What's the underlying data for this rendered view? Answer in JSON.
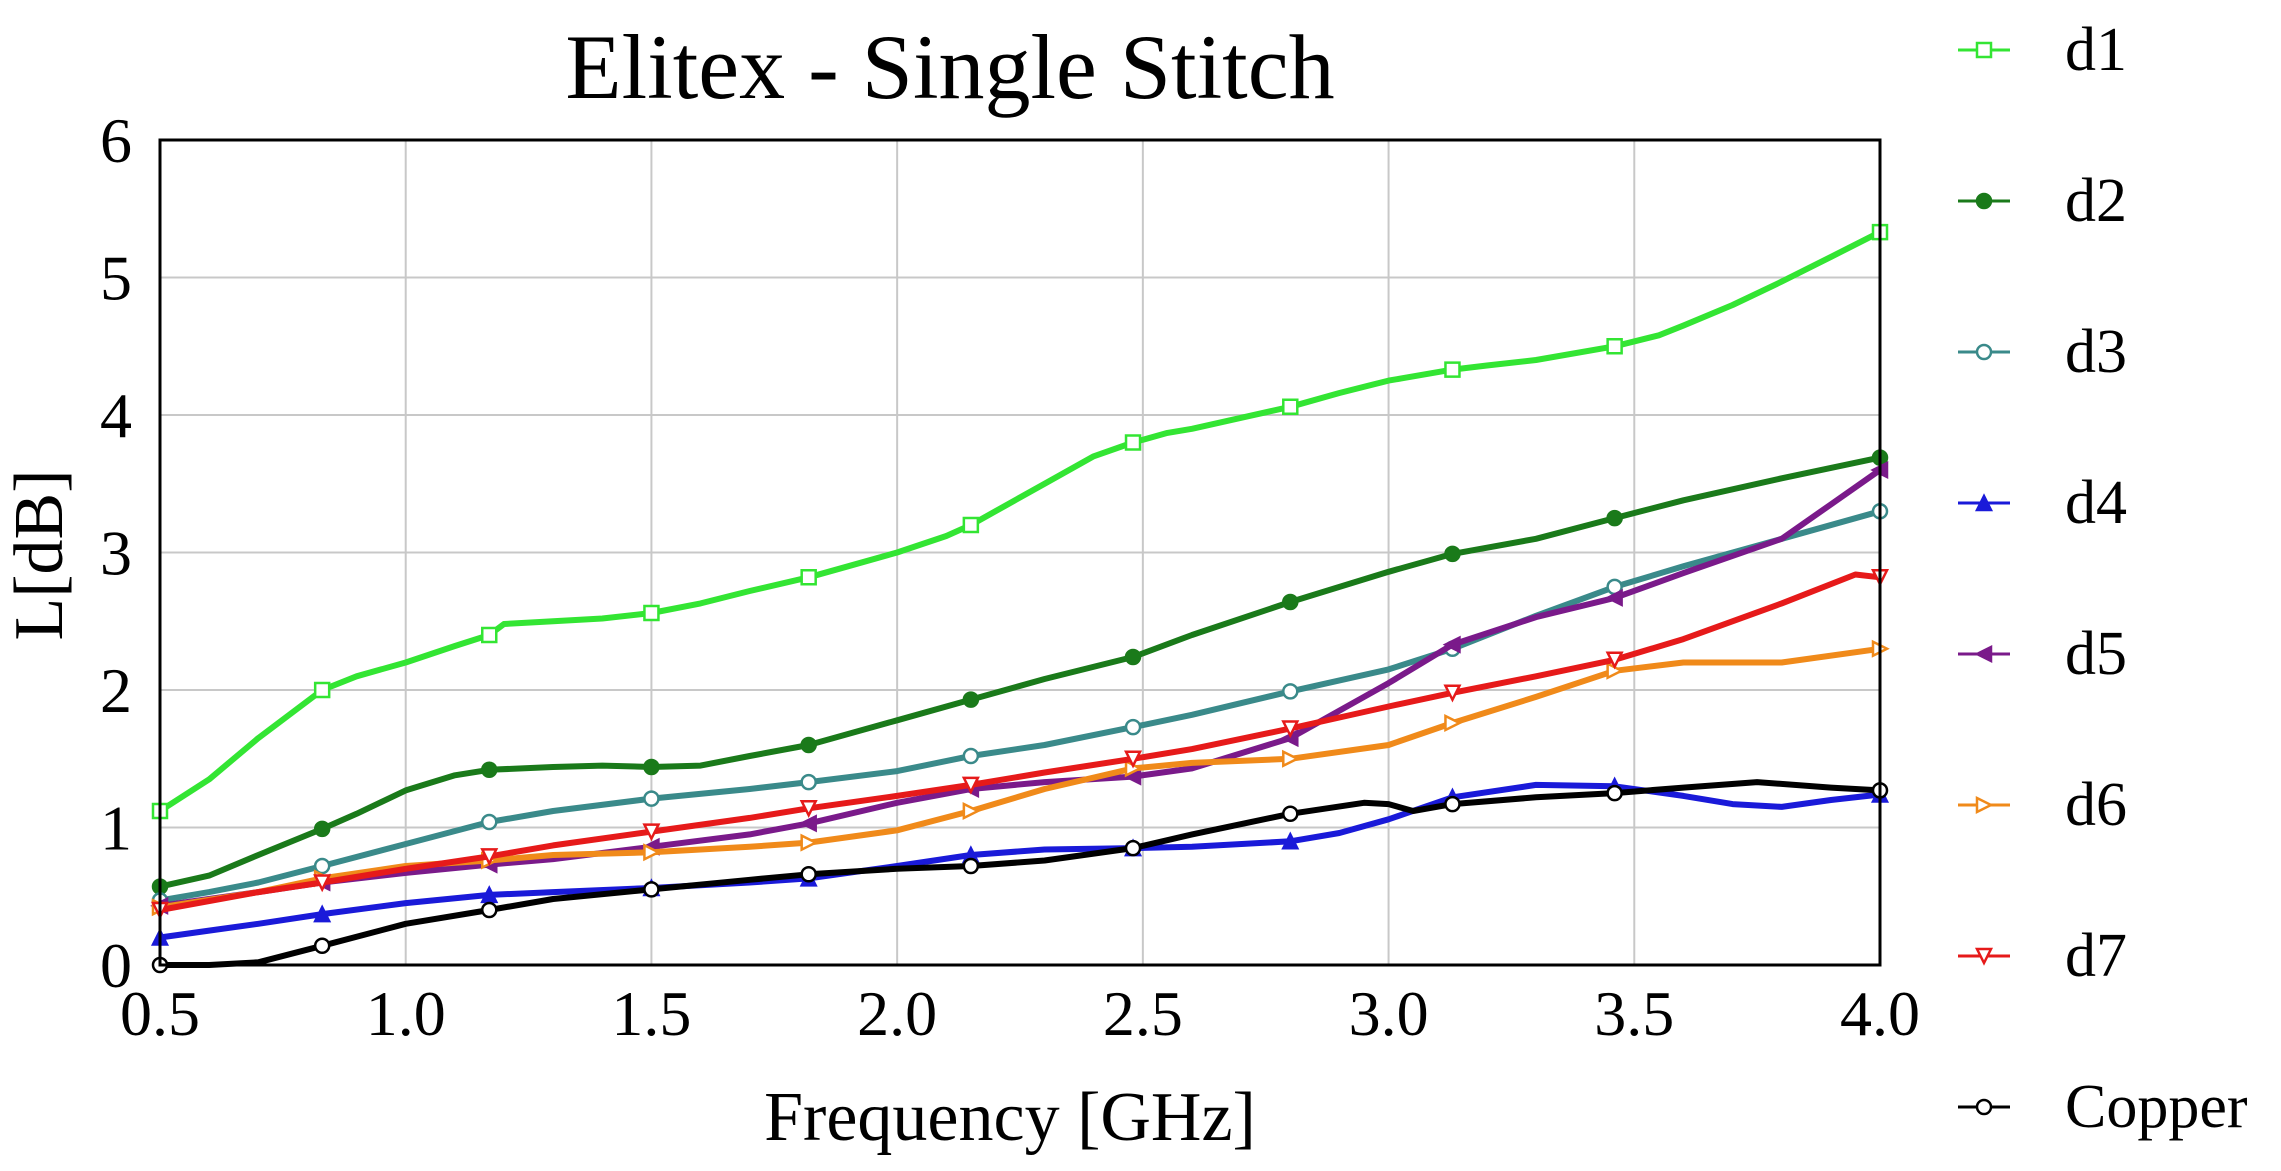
{
  "chart_data": {
    "type": "line",
    "title": "Elitex - Single Stitch",
    "xlabel": "Frequency [GHz]",
    "ylabel": "L[dB]",
    "xlim": [
      0.5,
      4.0
    ],
    "ylim": [
      0,
      6
    ],
    "xticks": [
      "0.5",
      "1.0",
      "1.5",
      "2.0",
      "2.5",
      "3.0",
      "3.5",
      "4.0"
    ],
    "yticks": [
      "0",
      "1",
      "2",
      "3",
      "4",
      "5",
      "6"
    ],
    "grid": true,
    "legend_position": "right",
    "series": [
      {
        "name": "d1",
        "color": "#33e533",
        "marker": "square-open",
        "x": [
          0.5,
          0.6,
          0.7,
          0.83,
          0.9,
          1.0,
          1.1,
          1.17,
          1.2,
          1.3,
          1.4,
          1.5,
          1.6,
          1.7,
          1.82,
          1.9,
          2.0,
          2.1,
          2.15,
          2.2,
          2.3,
          2.4,
          2.48,
          2.55,
          2.6,
          2.7,
          2.8,
          2.9,
          3.0,
          3.13,
          3.2,
          3.3,
          3.46,
          3.55,
          3.6,
          3.7,
          3.8,
          3.9,
          4.0
        ],
        "y": [
          1.12,
          1.35,
          1.65,
          2.0,
          2.1,
          2.2,
          2.32,
          2.4,
          2.48,
          2.5,
          2.52,
          2.56,
          2.63,
          2.72,
          2.82,
          2.9,
          3.0,
          3.12,
          3.2,
          3.3,
          3.5,
          3.7,
          3.8,
          3.87,
          3.9,
          3.98,
          4.06,
          4.16,
          4.25,
          4.33,
          4.36,
          4.4,
          4.5,
          4.58,
          4.65,
          4.8,
          4.97,
          5.15,
          5.33
        ]
      },
      {
        "name": "d2",
        "color": "#1a7a1a",
        "marker": "circle-filled",
        "x": [
          0.5,
          0.6,
          0.7,
          0.83,
          0.9,
          1.0,
          1.1,
          1.17,
          1.3,
          1.4,
          1.5,
          1.6,
          1.7,
          1.82,
          1.9,
          2.0,
          2.15,
          2.3,
          2.48,
          2.6,
          2.8,
          3.0,
          3.13,
          3.3,
          3.46,
          3.6,
          3.8,
          4.0
        ],
        "y": [
          0.57,
          0.65,
          0.8,
          0.99,
          1.1,
          1.27,
          1.38,
          1.42,
          1.44,
          1.45,
          1.44,
          1.45,
          1.52,
          1.6,
          1.68,
          1.78,
          1.93,
          2.08,
          2.24,
          2.4,
          2.64,
          2.86,
          2.99,
          3.1,
          3.25,
          3.38,
          3.54,
          3.69
        ]
      },
      {
        "name": "d3",
        "color": "#3a8a8a",
        "marker": "circle-open",
        "x": [
          0.5,
          0.6,
          0.7,
          0.83,
          1.0,
          1.17,
          1.3,
          1.5,
          1.7,
          1.82,
          2.0,
          2.15,
          2.3,
          2.48,
          2.6,
          2.8,
          3.0,
          3.13,
          3.3,
          3.46,
          3.6,
          3.8,
          4.0
        ],
        "y": [
          0.47,
          0.53,
          0.6,
          0.72,
          0.88,
          1.04,
          1.12,
          1.21,
          1.28,
          1.33,
          1.41,
          1.52,
          1.6,
          1.73,
          1.82,
          1.99,
          2.15,
          2.3,
          2.54,
          2.75,
          2.9,
          3.1,
          3.3
        ]
      },
      {
        "name": "d4",
        "color": "#1a1ad9",
        "marker": "triangle-filled",
        "x": [
          0.5,
          0.6,
          0.7,
          0.83,
          1.0,
          1.17,
          1.3,
          1.5,
          1.7,
          1.82,
          2.0,
          2.15,
          2.3,
          2.48,
          2.6,
          2.8,
          2.9,
          3.0,
          3.13,
          3.3,
          3.46,
          3.6,
          3.7,
          3.8,
          3.9,
          4.0
        ],
        "y": [
          0.2,
          0.25,
          0.3,
          0.37,
          0.45,
          0.51,
          0.53,
          0.56,
          0.6,
          0.63,
          0.72,
          0.8,
          0.84,
          0.85,
          0.86,
          0.9,
          0.96,
          1.06,
          1.22,
          1.31,
          1.3,
          1.23,
          1.17,
          1.15,
          1.2,
          1.24
        ]
      },
      {
        "name": "d5",
        "color": "#7a1a8a",
        "marker": "triangle-left-filled",
        "x": [
          0.5,
          0.7,
          0.83,
          1.0,
          1.17,
          1.3,
          1.5,
          1.7,
          1.82,
          2.0,
          2.15,
          2.3,
          2.48,
          2.6,
          2.8,
          3.0,
          3.13,
          3.3,
          3.46,
          3.6,
          3.8,
          3.9,
          4.0
        ],
        "y": [
          0.43,
          0.53,
          0.6,
          0.67,
          0.73,
          0.77,
          0.86,
          0.95,
          1.03,
          1.18,
          1.28,
          1.33,
          1.37,
          1.43,
          1.65,
          2.05,
          2.33,
          2.53,
          2.67,
          2.85,
          3.1,
          3.35,
          3.6
        ]
      },
      {
        "name": "d6",
        "color": "#f08a1a",
        "marker": "triangle-right-open",
        "x": [
          0.5,
          0.7,
          0.83,
          1.0,
          1.17,
          1.3,
          1.5,
          1.7,
          1.82,
          2.0,
          2.15,
          2.3,
          2.48,
          2.6,
          2.8,
          3.0,
          3.13,
          3.3,
          3.46,
          3.6,
          3.8,
          4.0
        ],
        "y": [
          0.42,
          0.53,
          0.63,
          0.72,
          0.76,
          0.8,
          0.82,
          0.86,
          0.89,
          0.98,
          1.12,
          1.28,
          1.43,
          1.47,
          1.5,
          1.6,
          1.76,
          1.95,
          2.14,
          2.2,
          2.2,
          2.3
        ]
      },
      {
        "name": "d7",
        "color": "#e61a1a",
        "marker": "triangle-down-open",
        "x": [
          0.5,
          0.7,
          0.83,
          1.0,
          1.17,
          1.3,
          1.5,
          1.7,
          1.82,
          2.0,
          2.15,
          2.3,
          2.48,
          2.6,
          2.8,
          3.0,
          3.13,
          3.3,
          3.46,
          3.6,
          3.8,
          3.95,
          4.0
        ],
        "y": [
          0.4,
          0.53,
          0.6,
          0.7,
          0.79,
          0.87,
          0.97,
          1.07,
          1.14,
          1.23,
          1.31,
          1.4,
          1.5,
          1.57,
          1.72,
          1.88,
          1.98,
          2.1,
          2.22,
          2.37,
          2.63,
          2.84,
          2.82
        ]
      },
      {
        "name": "Copper",
        "color": "#000000",
        "marker": "circle-open",
        "x": [
          0.5,
          0.6,
          0.7,
          0.83,
          1.0,
          1.17,
          1.3,
          1.5,
          1.7,
          1.82,
          2.0,
          2.15,
          2.3,
          2.48,
          2.6,
          2.8,
          2.95,
          3.0,
          3.05,
          3.13,
          3.3,
          3.46,
          3.6,
          3.75,
          3.9,
          4.0
        ],
        "y": [
          0.0,
          0.0,
          0.02,
          0.14,
          0.3,
          0.4,
          0.48,
          0.55,
          0.62,
          0.66,
          0.7,
          0.72,
          0.76,
          0.85,
          0.95,
          1.1,
          1.18,
          1.17,
          1.12,
          1.17,
          1.22,
          1.25,
          1.29,
          1.33,
          1.29,
          1.27
        ]
      }
    ]
  }
}
